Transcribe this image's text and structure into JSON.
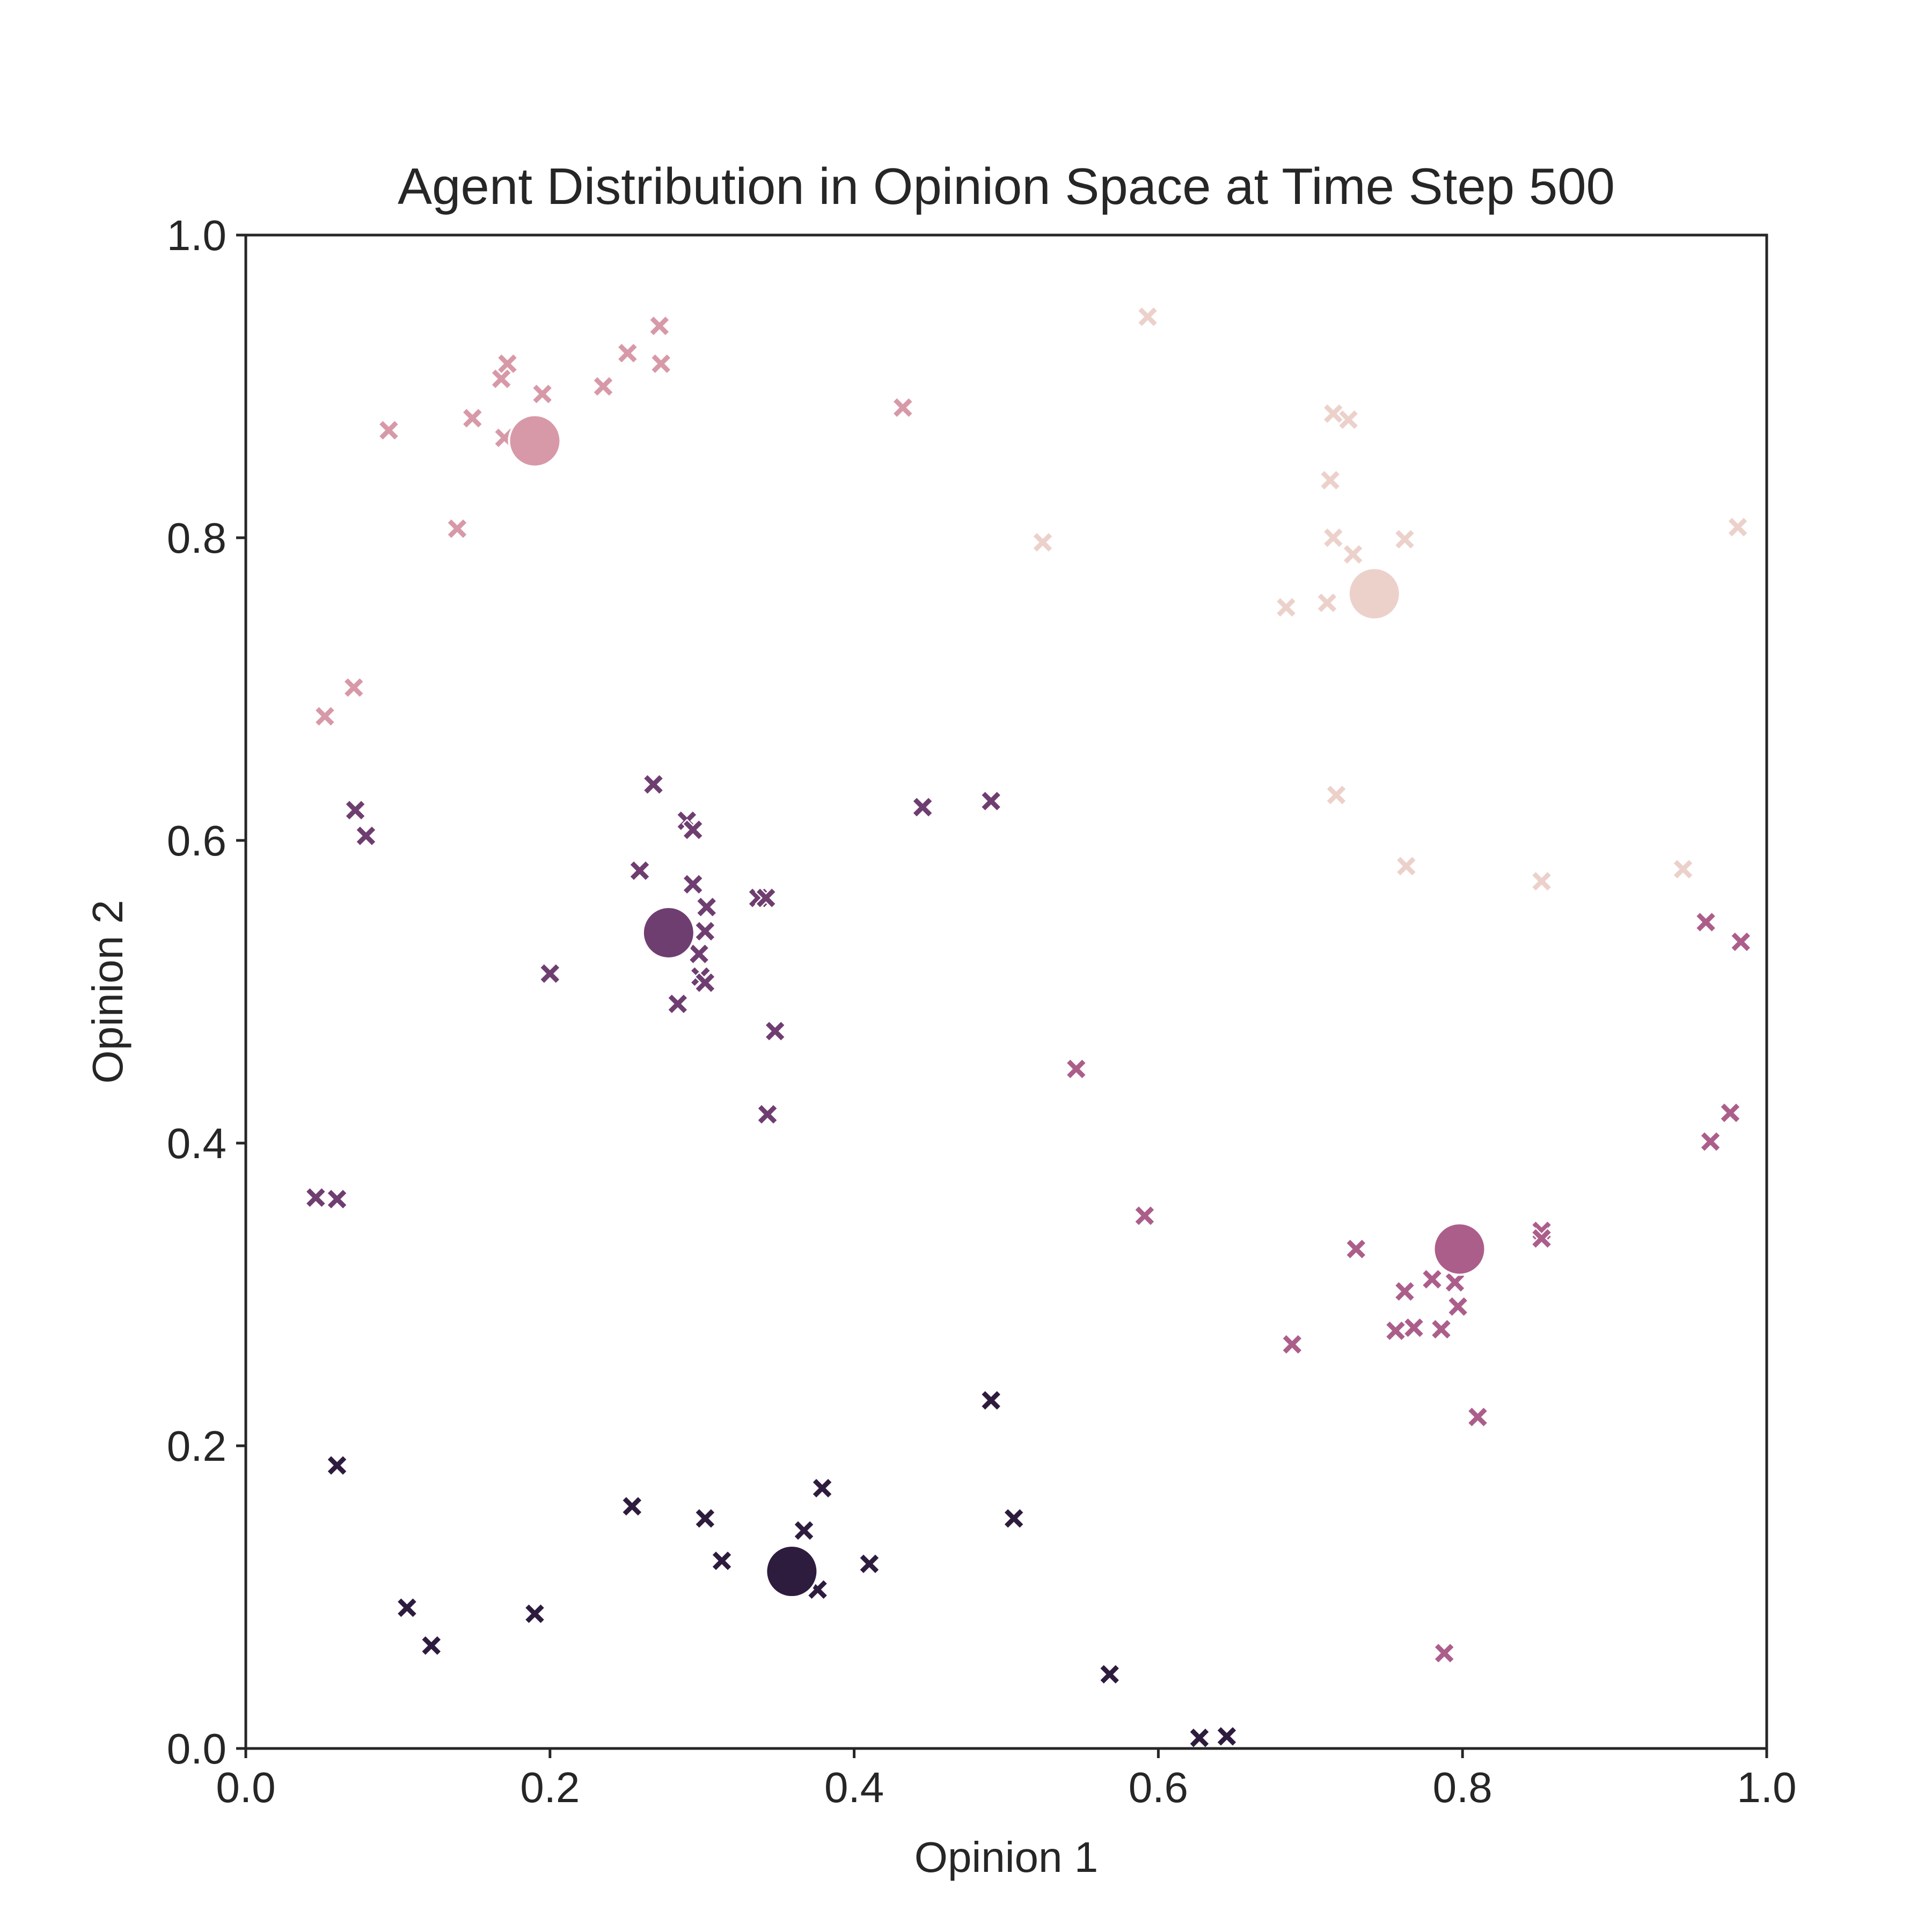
{
  "chart_data": {
    "type": "scatter",
    "title": "Agent Distribution in Opinion Space at Time Step 500",
    "xlabel": "Opinion 1",
    "ylabel": "Opinion 2",
    "xlim": [
      0.0,
      1.0
    ],
    "ylim": [
      0.0,
      1.0
    ],
    "x_ticks": [
      "0.0",
      "0.2",
      "0.4",
      "0.6",
      "0.8",
      "1.0"
    ],
    "y_ticks": [
      "0.0",
      "0.2",
      "0.4",
      "0.6",
      "0.8",
      "1.0"
    ],
    "grid": false,
    "legend": "none",
    "marker_agents": "x",
    "marker_centroids": "circle",
    "clusters": [
      {
        "color": "#d799a8",
        "centroid": [
          0.19,
          0.864
        ],
        "agents": [
          [
            0.094,
            0.871
          ],
          [
            0.139,
            0.806
          ],
          [
            0.149,
            0.879
          ],
          [
            0.168,
            0.905
          ],
          [
            0.172,
            0.915
          ],
          [
            0.195,
            0.895
          ],
          [
            0.235,
            0.9
          ],
          [
            0.251,
            0.922
          ],
          [
            0.272,
            0.94
          ],
          [
            0.273,
            0.915
          ],
          [
            0.432,
            0.886
          ],
          [
            0.052,
            0.682
          ],
          [
            0.071,
            0.701
          ],
          [
            0.17,
            0.866
          ]
        ]
      },
      {
        "color": "#ecd1cb",
        "centroid": [
          0.742,
          0.763
        ],
        "agents": [
          [
            0.593,
            0.946
          ],
          [
            0.524,
            0.797
          ],
          [
            0.715,
            0.882
          ],
          [
            0.725,
            0.878
          ],
          [
            0.713,
            0.838
          ],
          [
            0.715,
            0.8
          ],
          [
            0.728,
            0.789
          ],
          [
            0.762,
            0.799
          ],
          [
            0.684,
            0.754
          ],
          [
            0.711,
            0.757
          ],
          [
            0.981,
            0.807
          ],
          [
            0.717,
            0.63
          ],
          [
            0.763,
            0.583
          ],
          [
            0.852,
            0.573
          ],
          [
            0.945,
            0.581
          ]
        ]
      },
      {
        "color": "#6f3e71",
        "centroid": [
          0.278,
          0.539
        ],
        "agents": [
          [
            0.072,
            0.62
          ],
          [
            0.079,
            0.603
          ],
          [
            0.268,
            0.637
          ],
          [
            0.29,
            0.613
          ],
          [
            0.294,
            0.607
          ],
          [
            0.259,
            0.58
          ],
          [
            0.294,
            0.571
          ],
          [
            0.303,
            0.556
          ],
          [
            0.302,
            0.54
          ],
          [
            0.298,
            0.525
          ],
          [
            0.299,
            0.51
          ],
          [
            0.302,
            0.506
          ],
          [
            0.284,
            0.492
          ],
          [
            0.337,
            0.562
          ],
          [
            0.342,
            0.562
          ],
          [
            0.2,
            0.512
          ],
          [
            0.348,
            0.474
          ],
          [
            0.343,
            0.419
          ],
          [
            0.445,
            0.622
          ],
          [
            0.49,
            0.626
          ],
          [
            0.046,
            0.364
          ],
          [
            0.06,
            0.363
          ]
        ]
      },
      {
        "color": "#ac5e8b",
        "centroid": [
          0.798,
          0.33
        ],
        "agents": [
          [
            0.546,
            0.449
          ],
          [
            0.591,
            0.352
          ],
          [
            0.73,
            0.33
          ],
          [
            0.688,
            0.267
          ],
          [
            0.762,
            0.302
          ],
          [
            0.78,
            0.31
          ],
          [
            0.795,
            0.308
          ],
          [
            0.797,
            0.292
          ],
          [
            0.756,
            0.276
          ],
          [
            0.768,
            0.278
          ],
          [
            0.786,
            0.277
          ],
          [
            0.81,
            0.219
          ],
          [
            0.852,
            0.342
          ],
          [
            0.852,
            0.337
          ],
          [
            0.788,
            0.063
          ],
          [
            0.96,
            0.546
          ],
          [
            0.983,
            0.533
          ],
          [
            0.976,
            0.42
          ],
          [
            0.963,
            0.401
          ]
        ]
      },
      {
        "color": "#2e1c3e",
        "centroid": [
          0.359,
          0.117
        ],
        "agents": [
          [
            0.06,
            0.187
          ],
          [
            0.106,
            0.093
          ],
          [
            0.122,
            0.068
          ],
          [
            0.19,
            0.089
          ],
          [
            0.254,
            0.16
          ],
          [
            0.302,
            0.152
          ],
          [
            0.313,
            0.124
          ],
          [
            0.367,
            0.144
          ],
          [
            0.379,
            0.172
          ],
          [
            0.376,
            0.105
          ],
          [
            0.41,
            0.122
          ],
          [
            0.49,
            0.23
          ],
          [
            0.505,
            0.152
          ],
          [
            0.568,
            0.049
          ],
          [
            0.627,
            0.007
          ],
          [
            0.645,
            0.008
          ]
        ]
      }
    ]
  }
}
